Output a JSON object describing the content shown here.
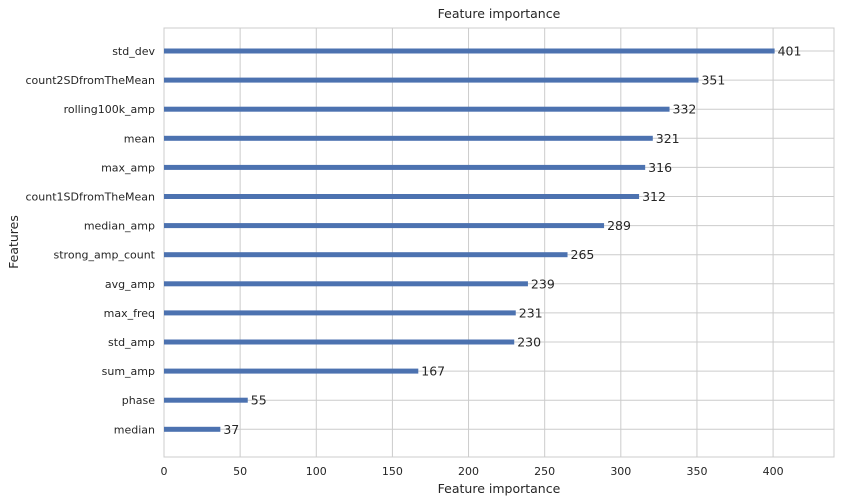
{
  "chart_data": {
    "type": "bar",
    "orientation": "horizontal",
    "title": "Feature importance",
    "xlabel": "Feature importance",
    "ylabel": "Features",
    "xlim": [
      0,
      440
    ],
    "xticks": [
      0,
      50,
      100,
      150,
      200,
      250,
      300,
      350,
      400
    ],
    "grid": true,
    "bar_color": "#4c72b0",
    "categories": [
      "std_dev",
      "count2SDfromTheMean",
      "rolling100k_amp",
      "mean",
      "max_amp",
      "count1SDfromTheMean",
      "median_amp",
      "strong_amp_count",
      "avg_amp",
      "max_freq",
      "std_amp",
      "sum_amp",
      "phase",
      "median"
    ],
    "values": [
      401,
      351,
      332,
      321,
      316,
      312,
      289,
      265,
      239,
      231,
      230,
      167,
      55,
      37
    ]
  }
}
